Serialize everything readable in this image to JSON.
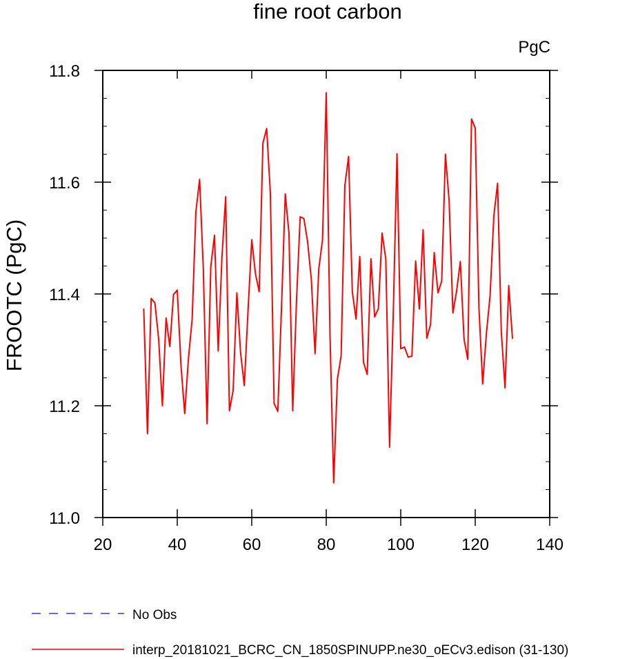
{
  "chart_data": {
    "type": "line",
    "title": "fine root carbon",
    "units": "PgC",
    "ylabel": "FROOTC  (PgC)",
    "xlabel": "",
    "xlim": [
      20,
      140
    ],
    "ylim": [
      11.0,
      11.8
    ],
    "x_ticks": [
      20,
      40,
      60,
      80,
      100,
      120,
      140
    ],
    "y_ticks": [
      11.0,
      11.2,
      11.4,
      11.6,
      11.8
    ],
    "legend_position": "bottom-left",
    "series": [
      {
        "name": "No Obs",
        "color": "#3333ff",
        "dash": "dashed",
        "x": [],
        "values": []
      },
      {
        "name": "interp_20181021_BCRC_CN_1850SPINUPP.ne30_oECv3.edison (31-130)",
        "color": "#ff0000",
        "dash": "solid",
        "x": [
          31,
          32,
          33,
          34,
          35,
          36,
          37,
          38,
          39,
          40,
          41,
          42,
          43,
          44,
          45,
          46,
          47,
          48,
          49,
          50,
          51,
          52,
          53,
          54,
          55,
          56,
          57,
          58,
          59,
          60,
          61,
          62,
          63,
          64,
          65,
          66,
          67,
          68,
          69,
          70,
          71,
          72,
          73,
          74,
          75,
          76,
          77,
          78,
          79,
          80,
          81,
          82,
          83,
          84,
          85,
          86,
          87,
          88,
          89,
          90,
          91,
          92,
          93,
          94,
          95,
          96,
          97,
          98,
          99,
          100,
          101,
          102,
          103,
          104,
          105,
          106,
          107,
          108,
          109,
          110,
          111,
          112,
          113,
          114,
          115,
          116,
          117,
          118,
          119,
          120,
          121,
          122,
          123,
          124,
          125,
          126,
          127,
          128,
          129,
          130
        ],
        "values": [
          11.374,
          11.15,
          11.392,
          11.384,
          11.32,
          11.2,
          11.357,
          11.306,
          11.399,
          11.407,
          11.272,
          11.186,
          11.284,
          11.355,
          11.547,
          11.605,
          11.444,
          11.168,
          11.449,
          11.505,
          11.298,
          11.466,
          11.574,
          11.191,
          11.227,
          11.402,
          11.295,
          11.236,
          11.37,
          11.497,
          11.436,
          11.404,
          11.67,
          11.696,
          11.58,
          11.204,
          11.19,
          11.378,
          11.579,
          11.508,
          11.191,
          11.385,
          11.538,
          11.535,
          11.493,
          11.426,
          11.293,
          11.445,
          11.497,
          11.76,
          11.33,
          11.062,
          11.248,
          11.289,
          11.594,
          11.646,
          11.404,
          11.355,
          11.467,
          11.278,
          11.256,
          11.463,
          11.359,
          11.374,
          11.509,
          11.462,
          11.126,
          11.366,
          11.651,
          11.302,
          11.305,
          11.287,
          11.289,
          11.459,
          11.373,
          11.515,
          11.321,
          11.345,
          11.474,
          11.402,
          11.423,
          11.65,
          11.566,
          11.366,
          11.405,
          11.458,
          11.319,
          11.283,
          11.713,
          11.697,
          11.375,
          11.239,
          11.329,
          11.398,
          11.54,
          11.598,
          11.333,
          11.232,
          11.415,
          11.32
        ]
      }
    ]
  }
}
